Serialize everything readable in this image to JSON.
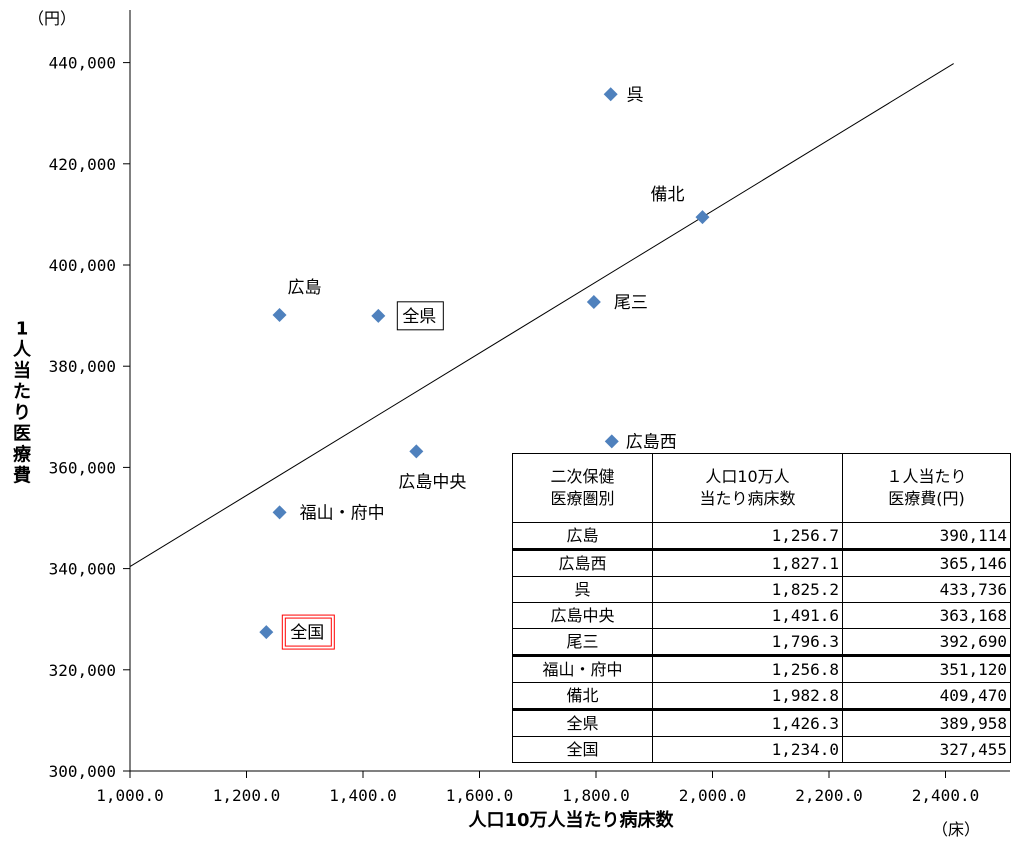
{
  "chart_data": {
    "type": "scatter",
    "xlabel": "人口10万人当たり病床数",
    "ylabel": "1人当たり医療費",
    "x_unit": "（床）",
    "y_unit": "（円）",
    "xlim": [
      1000.0,
      2500.0
    ],
    "ylim": [
      300000,
      450000
    ],
    "x_ticks": [
      "1,000.0",
      "1,200.0",
      "1,400.0",
      "1,600.0",
      "1,800.0",
      "2,000.0",
      "2,200.0",
      "2,400.0"
    ],
    "y_ticks": [
      "300,000",
      "320,000",
      "340,000",
      "360,000",
      "380,000",
      "400,000",
      "420,000",
      "440,000"
    ],
    "points": [
      {
        "label": "広島",
        "x": 1256.7,
        "y": 390114
      },
      {
        "label": "広島西",
        "x": 1827.1,
        "y": 365146
      },
      {
        "label": "呉",
        "x": 1825.2,
        "y": 433736
      },
      {
        "label": "広島中央",
        "x": 1491.6,
        "y": 363168
      },
      {
        "label": "尾三",
        "x": 1796.3,
        "y": 392690
      },
      {
        "label": "福山・府中",
        "x": 1256.8,
        "y": 351120
      },
      {
        "label": "備北",
        "x": 1982.8,
        "y": 409470
      },
      {
        "label": "全県",
        "x": 1426.3,
        "y": 389958
      },
      {
        "label": "全国",
        "x": 1234.0,
        "y": 327455
      }
    ],
    "trendline": {
      "x": [
        1000.0,
        2414.0
      ],
      "y": [
        340400,
        439800
      ]
    },
    "marker_color": "#4f81bd",
    "highlight_color": "#ff0000",
    "grid": false,
    "legend": "none"
  },
  "table": {
    "headers": [
      "二次保健\n医療圏別",
      "人口10万人\n当たり病床数",
      "１人当たり\n医療費(円)"
    ],
    "rows": [
      {
        "name": "広島",
        "beds": "1,256.7",
        "cost": "390,114"
      },
      {
        "name": "広島西",
        "beds": "1,827.1",
        "cost": "365,146"
      },
      {
        "name": "呉",
        "beds": "1,825.2",
        "cost": "433,736"
      },
      {
        "name": "広島中央",
        "beds": "1,491.6",
        "cost": "363,168"
      },
      {
        "name": "尾三",
        "beds": "1,796.3",
        "cost": "392,690"
      },
      {
        "name": "福山・府中",
        "beds": "1,256.8",
        "cost": "351,120"
      },
      {
        "name": "備北",
        "beds": "1,982.8",
        "cost": "409,470"
      },
      {
        "name": "全県",
        "beds": "1,426.3",
        "cost": "389,958"
      },
      {
        "name": "全国",
        "beds": "1,234.0",
        "cost": "327,455"
      }
    ]
  }
}
